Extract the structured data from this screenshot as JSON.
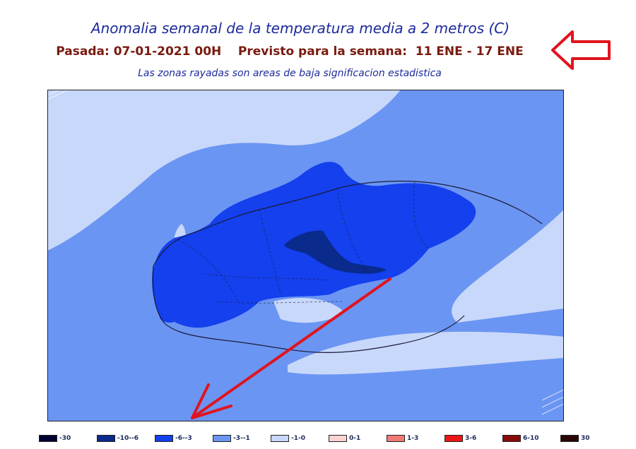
{
  "header": {
    "title": "Anomalia semanal de la temperatura media a 2 metros (C)",
    "subtitle": "Pasada: 07-01-2021 00H    Previsto para la semana:  11 ENE - 17 ENE",
    "note": "Las zonas rayadas son areas de baja significacion estadistica"
  },
  "legend": {
    "items": [
      {
        "label": "-30",
        "color": "#000033"
      },
      {
        "label": "-10--6",
        "color": "#0a2a8c"
      },
      {
        "label": "-6--3",
        "color": "#1440ee"
      },
      {
        "label": "-3--1",
        "color": "#6b95f2"
      },
      {
        "label": "-1-0",
        "color": "#c8d8fb"
      },
      {
        "label": "0-1",
        "color": "#fbd2d2"
      },
      {
        "label": "1-3",
        "color": "#f07a78"
      },
      {
        "label": "3-6",
        "color": "#f01414"
      },
      {
        "label": "6-10",
        "color": "#8a0a0a"
      },
      {
        "label": "30",
        "color": "#2a0606"
      }
    ]
  },
  "colors": {
    "annotation": "#e0141e",
    "title": "#1c2a9c",
    "subtitle": "#7a1a0e"
  }
}
